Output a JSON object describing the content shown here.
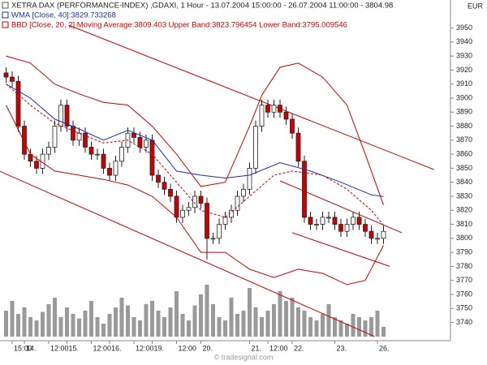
{
  "chart_data": {
    "type": "candlestick",
    "title": "XETRA DAX (PERFORMANCE-INDEX) ,GDAXI, 1 Hour - 13.07.2004 15:00:00 - 26.07.2004 11:00:00 - 3804.98",
    "currency": "EUR",
    "watermark": "© tradesignal.com",
    "ylim": [
      3727,
      3970
    ],
    "yticks": [
      3740,
      3750,
      3760,
      3770,
      3780,
      3790,
      3800,
      3810,
      3820,
      3830,
      3840,
      3850,
      3860,
      3870,
      3880,
      3890,
      3900,
      3910,
      3920,
      3930,
      3940,
      3950
    ],
    "xlim": [
      -1,
      73
    ],
    "xticks": [
      {
        "value": 1,
        "label": "15:00"
      },
      {
        "value": 3,
        "label": "14."
      },
      {
        "value": 7,
        "label": "12:00"
      },
      {
        "value": 10,
        "label": "15."
      },
      {
        "value": 14,
        "label": "12:00"
      },
      {
        "value": 17,
        "label": "16."
      },
      {
        "value": 21,
        "label": "12:00"
      },
      {
        "value": 24,
        "label": "19."
      },
      {
        "value": 28,
        "label": "12:00"
      },
      {
        "value": 32,
        "label": "20."
      },
      {
        "value": 40,
        "label": "21."
      },
      {
        "value": 43,
        "label": "12:00"
      },
      {
        "value": 47,
        "label": "22."
      },
      {
        "value": 54,
        "label": "23."
      },
      {
        "value": 61,
        "label": "26."
      }
    ],
    "up_color": "#ffffff",
    "down_color": "#cc0000",
    "open": [
      3918,
      3915,
      3912,
      3880,
      3860,
      3855,
      3850,
      3860,
      3865,
      3880,
      3895,
      3880,
      3870,
      3875,
      3865,
      3860,
      3860,
      3850,
      3845,
      3855,
      3865,
      3875,
      3872,
      3865,
      3870,
      3845,
      3840,
      3835,
      3830,
      3815,
      3820,
      3822,
      3830,
      3825,
      3800,
      3800,
      3810,
      3815,
      3820,
      3830,
      3835,
      3850,
      3880,
      3895,
      3890,
      3895,
      3890,
      3885,
      3875,
      3855,
      3815,
      3810,
      3810,
      3815,
      3815,
      3810,
      3805,
      3810,
      3815,
      3810,
      3805,
      3800,
      3800
    ],
    "high": [
      3922,
      3919,
      3916,
      3884,
      3864,
      3859,
      3864,
      3869,
      3884,
      3899,
      3899,
      3884,
      3879,
      3879,
      3869,
      3864,
      3864,
      3854,
      3859,
      3869,
      3879,
      3879,
      3876,
      3874,
      3874,
      3849,
      3844,
      3839,
      3834,
      3824,
      3826,
      3834,
      3834,
      3829,
      3804,
      3814,
      3819,
      3824,
      3834,
      3839,
      3854,
      3884,
      3899,
      3899,
      3899,
      3899,
      3894,
      3889,
      3879,
      3859,
      3819,
      3814,
      3819,
      3819,
      3819,
      3814,
      3814,
      3819,
      3819,
      3814,
      3809,
      3804,
      3809
    ],
    "low": [
      3911,
      3908,
      3876,
      3856,
      3851,
      3846,
      3846,
      3856,
      3861,
      3876,
      3876,
      3866,
      3866,
      3861,
      3856,
      3856,
      3846,
      3841,
      3841,
      3851,
      3861,
      3868,
      3861,
      3861,
      3841,
      3836,
      3831,
      3826,
      3811,
      3811,
      3816,
      3818,
      3821,
      3785,
      3796,
      3796,
      3806,
      3811,
      3816,
      3826,
      3831,
      3846,
      3876,
      3886,
      3886,
      3886,
      3881,
      3871,
      3851,
      3811,
      3806,
      3806,
      3806,
      3811,
      3806,
      3801,
      3801,
      3806,
      3806,
      3801,
      3796,
      3796,
      3796
    ],
    "close": [
      3915,
      3912,
      3880,
      3860,
      3855,
      3850,
      3860,
      3865,
      3880,
      3895,
      3880,
      3870,
      3875,
      3865,
      3860,
      3860,
      3850,
      3845,
      3855,
      3865,
      3875,
      3872,
      3865,
      3870,
      3845,
      3840,
      3835,
      3830,
      3815,
      3820,
      3822,
      3830,
      3825,
      3800,
      3800,
      3810,
      3815,
      3820,
      3830,
      3835,
      3850,
      3880,
      3895,
      3890,
      3895,
      3890,
      3885,
      3875,
      3855,
      3815,
      3810,
      3810,
      3815,
      3815,
      3810,
      3805,
      3810,
      3815,
      3810,
      3805,
      3800,
      3800,
      3805
    ],
    "volume": [
      40,
      55,
      35,
      45,
      30,
      25,
      38,
      50,
      60,
      30,
      45,
      35,
      28,
      40,
      55,
      30,
      20,
      35,
      45,
      60,
      48,
      30,
      25,
      50,
      55,
      40,
      30,
      45,
      70,
      35,
      25,
      48,
      65,
      80,
      50,
      30,
      25,
      60,
      35,
      40,
      75,
      45,
      30,
      40,
      50,
      70,
      55,
      60,
      45,
      40,
      30,
      25,
      35,
      50,
      30,
      25,
      20,
      35,
      30,
      25,
      30,
      40,
      15
    ],
    "volume_color": "#9a9a9a",
    "volume_lim": [
      0,
      100
    ],
    "overlays": [
      {
        "name": "WMA [Close, 40]:3829.733268",
        "color": "#1a2fb0",
        "lines": [
          {
            "style": "solid",
            "x": [
              0,
              4,
              8,
              12,
              16,
              20,
              24,
              28,
              32,
              36,
              40,
              45,
              50,
              55,
              60,
              62
            ],
            "values": [
              3910,
              3900,
              3885,
              3878,
              3870,
              3877,
              3870,
              3848,
              3845,
              3843,
              3845,
              3854,
              3848,
              3840,
              3831,
              3829.733268
            ]
          }
        ]
      },
      {
        "name": "BBD [Close, 20, 2] Moving Average:3809.403 Upper Band:3823.796454 Lower Band:3795.009546",
        "color": "#cc0000",
        "lines": [
          {
            "style": "solid",
            "x": [
              0,
              4,
              8,
              12,
              16,
              20,
              24,
              28,
              32,
              36,
              40,
              42,
              45,
              48,
              52,
              56,
              59,
              62
            ],
            "values": [
              3930,
              3925,
              3910,
              3903,
              3897,
              3895,
              3880,
              3860,
              3837,
              3840,
              3880,
              3902,
              3922,
              3925,
              3915,
              3895,
              3860,
              3823.796454
            ]
          },
          {
            "style": "dashed",
            "x": [
              0,
              4,
              8,
              12,
              16,
              20,
              24,
              28,
              32,
              36,
              40,
              44,
              47,
              52,
              56,
              60,
              62
            ],
            "values": [
              3910,
              3895,
              3882,
              3875,
              3868,
              3870,
              3860,
              3840,
              3820,
              3815,
              3830,
              3845,
              3848,
              3845,
              3835,
              3820,
              3809.403
            ]
          },
          {
            "style": "solid",
            "x": [
              0,
              4,
              8,
              12,
              16,
              20,
              24,
              28,
              32,
              36,
              40,
              44,
              48,
              52,
              56,
              59,
              62
            ],
            "values": [
              3895,
              3860,
              3848,
              3845,
              3842,
              3838,
              3830,
              3815,
              3790,
              3790,
              3778,
              3772,
              3778,
              3775,
              3767,
              3770,
              3795.009546
            ]
          }
        ]
      }
    ],
    "trendline_color": "#cc0000",
    "trendlines": [
      {
        "x": [
          10.3,
          70.3
        ],
        "values": [
          3952,
          3849
        ]
      },
      {
        "x": [
          -1.1,
          60.5
        ],
        "values": [
          3848,
          3730
        ]
      },
      {
        "x": [
          45,
          65
        ],
        "values": [
          3841,
          3804
        ]
      },
      {
        "x": [
          47,
          63
        ],
        "values": [
          3804,
          3780
        ]
      }
    ]
  }
}
